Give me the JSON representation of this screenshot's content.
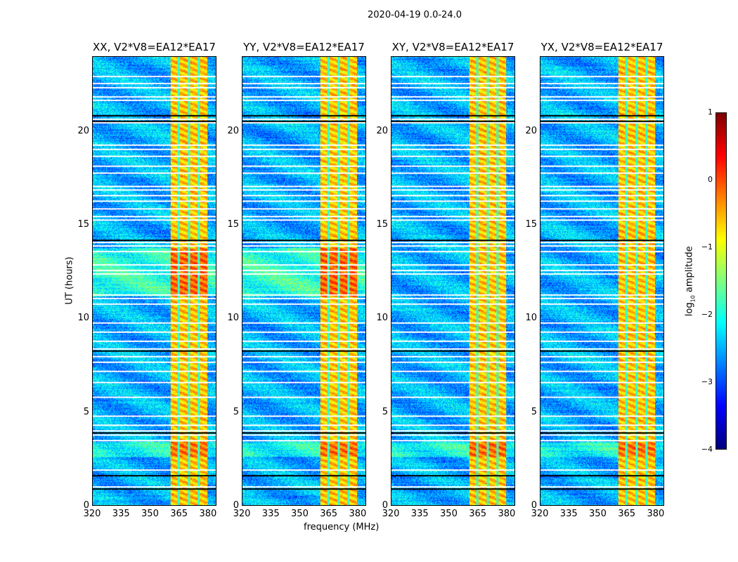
{
  "chart_data": {
    "type": "heatmap",
    "title": "2020-04-19 0.0-24.0",
    "xlabel": "frequency (MHz)",
    "ylabel": "UT (hours)",
    "xlim": [
      320,
      384.4
    ],
    "ylim": [
      0,
      24
    ],
    "xticks": [
      "320",
      "335",
      "350",
      "365",
      "380"
    ],
    "xtick_values": [
      320,
      335,
      350,
      365,
      380
    ],
    "yticks": [
      "0",
      "5",
      "10",
      "15",
      "20"
    ],
    "ytick_values": [
      0,
      5,
      10,
      15,
      20
    ],
    "panels": [
      {
        "title": "XX, V2*V8=EA12*EA17",
        "pol": "XX"
      },
      {
        "title": "YY, V2*V8=EA12*EA17",
        "pol": "YY"
      },
      {
        "title": "XY, V2*V8=EA12*EA17",
        "pol": "XY"
      },
      {
        "title": "YX, V2*V8=EA12*EA17",
        "pol": "YX"
      }
    ],
    "colorbar": {
      "label": "log10 amplitude",
      "label_main": "log",
      "label_sub": "10",
      "label_rest": " amplitude",
      "range": [
        -4,
        1
      ],
      "ticks": [
        "−4",
        "−3",
        "−2",
        "−1",
        "0",
        "1"
      ],
      "tick_values": [
        -4,
        -3,
        -2,
        -1,
        0,
        1
      ],
      "colormap": "jet"
    },
    "bright_band_mhz": [
      360.7,
      380.0
    ],
    "subband_edges_mhz": [
      364.8,
      370.2,
      375.3
    ],
    "flagged_hours": [
      23.0,
      22.6,
      22.4,
      21.9,
      21.7,
      20.9,
      20.7,
      20.5,
      19.3,
      19.1,
      18.7,
      18.2,
      17.8,
      17.1,
      16.9,
      16.6,
      16.3,
      15.9,
      15.5,
      15.3,
      14.1,
      13.9,
      13.6,
      12.9,
      12.6,
      12.4,
      11.3,
      11.1,
      10.8,
      9.8,
      9.3,
      8.8,
      8.4,
      8.0,
      7.7,
      7.2,
      6.6,
      5.8,
      4.8,
      4.3,
      4.0,
      3.8,
      3.5,
      1.9,
      1.6,
      1.0
    ],
    "black_line_hours": [
      20.9,
      20.6,
      14.2,
      8.3,
      3.9,
      1.6,
      0.9
    ]
  }
}
